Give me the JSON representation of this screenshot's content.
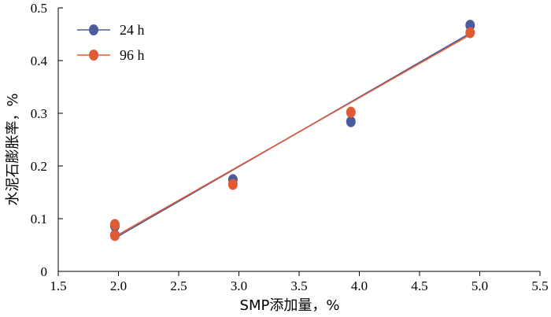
{
  "chart_data": {
    "type": "scatter",
    "xlabel": "SMP添加量，%",
    "ylabel": "水泥石膨胀率，%",
    "xlim": [
      1.5,
      5.5
    ],
    "ylim": [
      0,
      0.5
    ],
    "x_ticks": [
      1.5,
      2.0,
      2.5,
      3.0,
      3.5,
      4.0,
      4.5,
      5.0,
      5.5
    ],
    "x_tick_labels": [
      "1.5",
      "2.0",
      "2.5",
      "3.0",
      "3.5",
      "4.0",
      "4.5",
      "5.0",
      "5.5"
    ],
    "y_ticks": [
      0,
      0.1,
      0.2,
      0.3,
      0.4,
      0.5
    ],
    "y_tick_labels": [
      "0",
      "0.1",
      "0.2",
      "0.3",
      "0.4",
      "0.5"
    ],
    "legend_position": "top-left",
    "grid": false,
    "series": [
      {
        "name": "24 h",
        "color": "#4a5c9b",
        "points": [
          {
            "x": 1.97,
            "y": 0.086
          },
          {
            "x": 1.97,
            "y": 0.069
          },
          {
            "x": 2.95,
            "y": 0.174
          },
          {
            "x": 3.93,
            "y": 0.284
          },
          {
            "x": 4.92,
            "y": 0.467
          }
        ],
        "fit": [
          {
            "x": 1.97,
            "y": 0.063
          },
          {
            "x": 4.92,
            "y": 0.452
          }
        ]
      },
      {
        "name": "96 h",
        "color": "#e05a36",
        "points": [
          {
            "x": 1.97,
            "y": 0.089
          },
          {
            "x": 1.97,
            "y": 0.068
          },
          {
            "x": 2.95,
            "y": 0.165
          },
          {
            "x": 3.93,
            "y": 0.302
          },
          {
            "x": 4.92,
            "y": 0.453
          }
        ],
        "fit": [
          {
            "x": 1.97,
            "y": 0.066
          },
          {
            "x": 4.92,
            "y": 0.449
          }
        ]
      }
    ]
  }
}
